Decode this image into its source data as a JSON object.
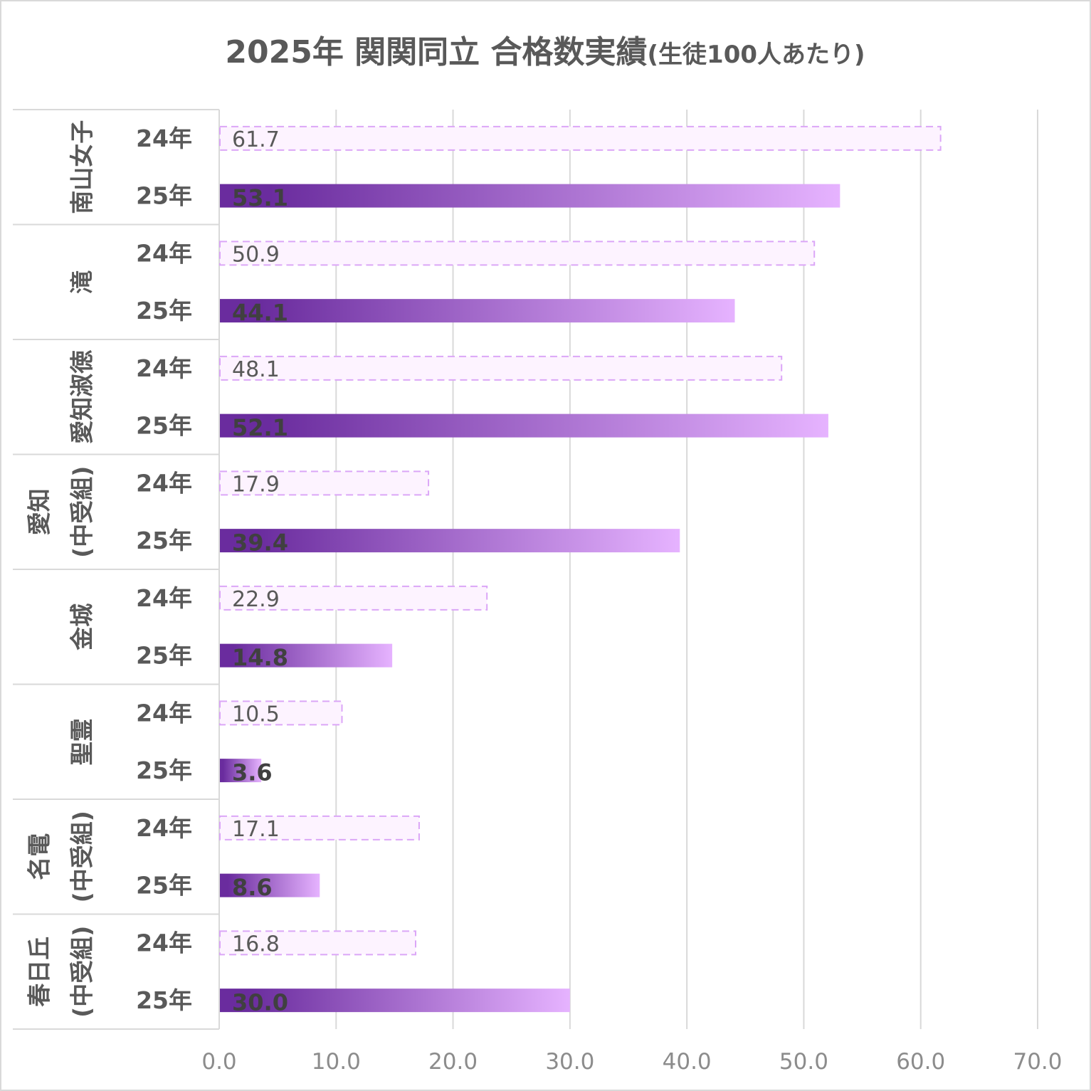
{
  "chart_data": {
    "type": "bar",
    "orientation": "horizontal",
    "title": "2025年 関関同立 合格数実績",
    "title_suffix": "(生徒100人あたり)",
    "xlim": [
      0,
      70
    ],
    "ticks": [
      "0.0",
      "10.0",
      "20.0",
      "30.0",
      "40.0",
      "50.0",
      "60.0",
      "70.0"
    ],
    "tick_values": [
      0,
      10,
      20,
      30,
      40,
      50,
      60,
      70
    ],
    "grid": true,
    "legend": "none",
    "year_labels": [
      "24年",
      "25年"
    ],
    "groups": [
      {
        "name_lines": [
          "南山女子"
        ],
        "values": {
          "24年": 61.7,
          "25年": 53.1
        },
        "labels": {
          "24年": "61.7",
          "25年": "53.1"
        }
      },
      {
        "name_lines": [
          "滝"
        ],
        "values": {
          "24年": 50.9,
          "25年": 44.1
        },
        "labels": {
          "24年": "50.9",
          "25年": "44.1"
        }
      },
      {
        "name_lines": [
          "愛知淑徳"
        ],
        "values": {
          "24年": 48.1,
          "25年": 52.1
        },
        "labels": {
          "24年": "48.1",
          "25年": "52.1"
        }
      },
      {
        "name_lines": [
          "愛知",
          "(中受組)"
        ],
        "values": {
          "24年": 17.9,
          "25年": 39.4
        },
        "labels": {
          "24年": "17.9",
          "25年": "39.4"
        }
      },
      {
        "name_lines": [
          "金城"
        ],
        "values": {
          "24年": 22.9,
          "25年": 14.8
        },
        "labels": {
          "24年": "22.9",
          "25年": "14.8"
        }
      },
      {
        "name_lines": [
          "聖霊"
        ],
        "values": {
          "24年": 10.5,
          "25年": 3.6
        },
        "labels": {
          "24年": "10.5",
          "25年": "3.6"
        }
      },
      {
        "name_lines": [
          "名電",
          "(中受組)"
        ],
        "values": {
          "24年": 17.1,
          "25年": 8.6
        },
        "labels": {
          "24年": "17.1",
          "25年": "8.6"
        }
      },
      {
        "name_lines": [
          "春日丘",
          "(中受組)"
        ],
        "values": {
          "24年": 16.8,
          "25年": 30.0
        },
        "labels": {
          "24年": "16.8",
          "25年": "30.0"
        }
      }
    ],
    "colors": {
      "bar25_start": "#6a2c9e",
      "bar25_end": "#e6b3ff",
      "bar24_fill": "#fdf3ff",
      "bar24_border": "#dba6f7",
      "grid": "#d9d9d9"
    }
  }
}
